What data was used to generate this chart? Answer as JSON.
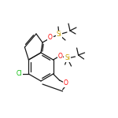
{
  "background_color": "#ffffff",
  "bond_color": "#1a1a1a",
  "atom_colors": {
    "O": "#ff0000",
    "Si": "#c8a000",
    "Cl": "#00bb00",
    "C": "#1a1a1a"
  },
  "figsize": [
    1.5,
    1.5
  ],
  "dpi": 100
}
